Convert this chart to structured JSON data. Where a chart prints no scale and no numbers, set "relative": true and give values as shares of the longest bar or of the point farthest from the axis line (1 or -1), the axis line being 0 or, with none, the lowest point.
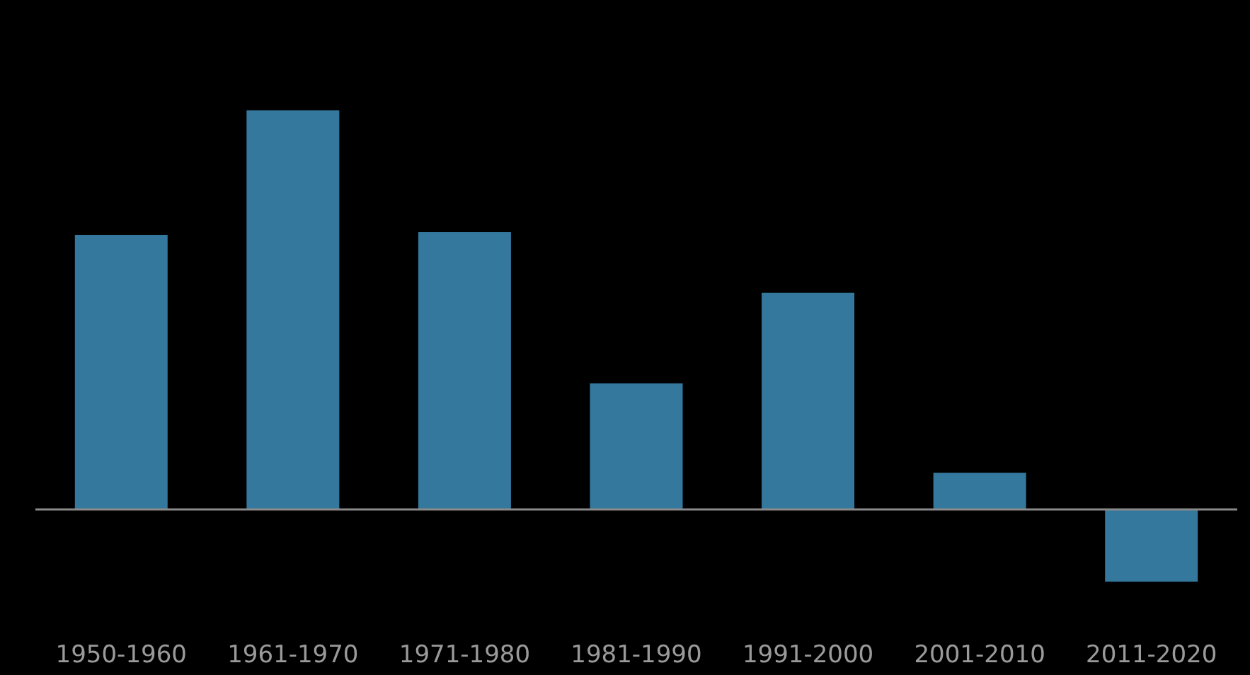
{
  "chart_data": {
    "type": "bar",
    "relative": true,
    "categories": [
      "1950-1960",
      "1961-1970",
      "1971-1980",
      "1981-1990",
      "1991-2000",
      "2001-2010",
      "2011-2020"
    ],
    "values": [
      0.688,
      1,
      0.695,
      0.316,
      0.543,
      0.092,
      -0.181
    ],
    "color": "#34789e"
  }
}
